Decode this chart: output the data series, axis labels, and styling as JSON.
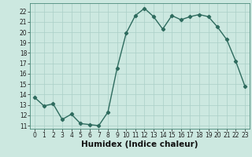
{
  "xlabel": "Humidex (Indice chaleur)",
  "x": [
    0,
    1,
    2,
    3,
    4,
    5,
    6,
    7,
    8,
    9,
    10,
    11,
    12,
    13,
    14,
    15,
    16,
    17,
    18,
    19,
    20,
    21,
    22,
    23
  ],
  "y": [
    13.7,
    12.9,
    13.1,
    11.6,
    12.1,
    11.2,
    11.1,
    11.0,
    12.3,
    16.5,
    19.9,
    21.6,
    22.3,
    21.5,
    20.3,
    21.6,
    21.2,
    21.5,
    21.7,
    21.5,
    20.5,
    19.3,
    17.2,
    14.8
  ],
  "xlim": [
    -0.5,
    23.5
  ],
  "ylim": [
    10.7,
    22.8
  ],
  "yticks": [
    11,
    12,
    13,
    14,
    15,
    16,
    17,
    18,
    19,
    20,
    21,
    22
  ],
  "xticks": [
    0,
    1,
    2,
    3,
    4,
    5,
    6,
    7,
    8,
    9,
    10,
    11,
    12,
    13,
    14,
    15,
    16,
    17,
    18,
    19,
    20,
    21,
    22,
    23
  ],
  "line_color": "#2e6b5e",
  "marker": "D",
  "marker_size": 2.2,
  "bg_color": "#cce8e0",
  "grid_color": "#aacfc7",
  "tick_label_fontsize": 5.5,
  "xlabel_fontsize": 7.5,
  "line_width": 1.0,
  "grid_linewidth": 0.5
}
